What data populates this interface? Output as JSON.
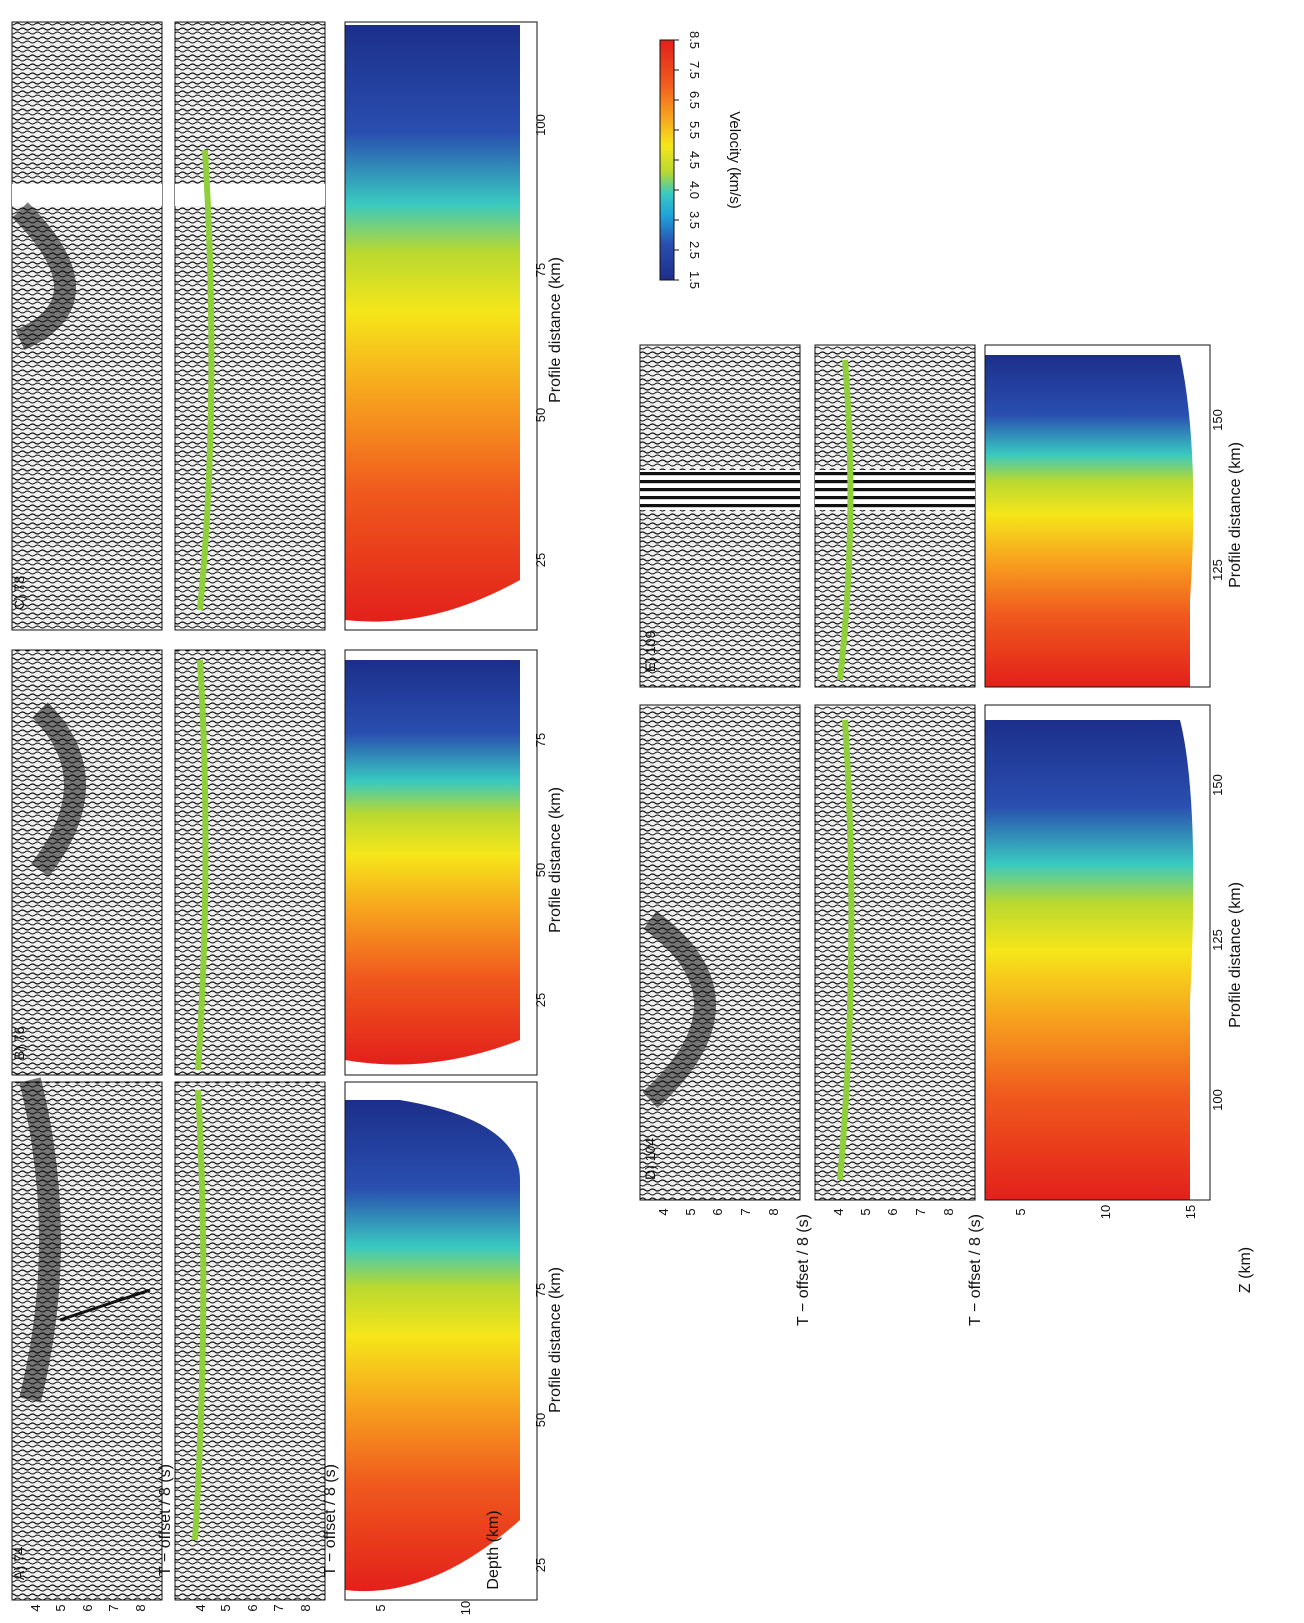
{
  "figure": {
    "colorbar": {
      "label": "Velocity (km/s)",
      "ticks": [
        "1.5",
        "2.5",
        "3.5",
        "4.0",
        "4.5",
        "5.5",
        "6.5",
        "7.5",
        "8.5"
      ],
      "colors": [
        "#1c2f8a",
        "#2a4fb0",
        "#1fa3dc",
        "#39c9c0",
        "#b8d830",
        "#f5e61a",
        "#f7a21e",
        "#f05a1e",
        "#e3201b"
      ]
    },
    "axis_labels": {
      "time": "T − offset / 8 (s)",
      "depth": "Depth (km)",
      "z": "Z (km)",
      "distance": "Profile distance (km)"
    },
    "panels_top": [
      {
        "label": "A) 74",
        "dist_ticks": [
          "25",
          "50",
          "75"
        ],
        "time_ticks": [
          "4",
          "5",
          "6",
          "7",
          "8"
        ],
        "depth_ticks": [
          "5",
          "10"
        ]
      },
      {
        "label": "B) 76",
        "dist_ticks": [
          "25",
          "50",
          "75"
        ]
      },
      {
        "label": "C) 78",
        "dist_ticks": [
          "25",
          "50",
          "75",
          "100"
        ]
      }
    ],
    "panels_bottom": [
      {
        "label": "D) 104",
        "dist_ticks": [
          "100",
          "125",
          "150"
        ],
        "time_ticks": [
          "4",
          "5",
          "6",
          "7",
          "8"
        ],
        "z_ticks": [
          "5",
          "10",
          "15"
        ]
      },
      {
        "label": "E) 109",
        "dist_ticks": [
          "125",
          "150"
        ]
      }
    ]
  }
}
